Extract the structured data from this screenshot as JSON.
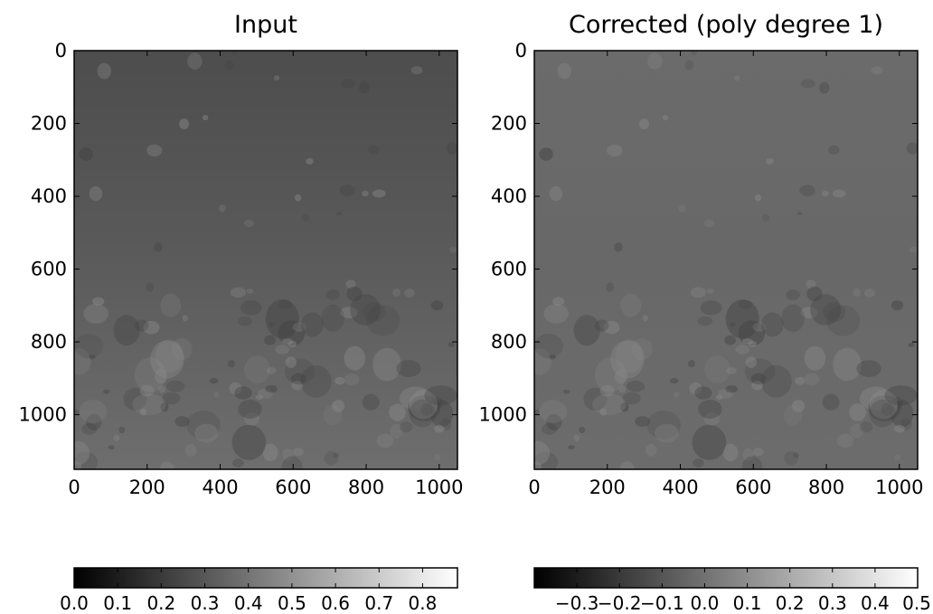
{
  "chart_data": [
    {
      "type": "heatmap",
      "title": "Input",
      "xlabel": "",
      "ylabel": "",
      "xlim": [
        0,
        1050
      ],
      "ylim": [
        1150,
        0
      ],
      "xticks": [
        0,
        200,
        400,
        600,
        800,
        1000
      ],
      "yticks": [
        0,
        200,
        400,
        600,
        800,
        1000
      ],
      "xticklabels": [
        "0",
        "200",
        "400",
        "600",
        "800",
        "1000"
      ],
      "yticklabels": [
        "0",
        "200",
        "400",
        "600",
        "800",
        "1000"
      ],
      "colormap": "gray",
      "colorbar": {
        "range": [
          0.0,
          0.88
        ],
        "ticks": [
          0.0,
          0.1,
          0.2,
          0.3,
          0.4,
          0.5,
          0.6,
          0.7,
          0.8
        ],
        "ticklabels": [
          "0.0",
          "0.1",
          "0.2",
          "0.3",
          "0.4",
          "0.5",
          "0.6",
          "0.7",
          "0.8"
        ]
      }
    },
    {
      "type": "heatmap",
      "title": "Corrected (poly degree 1)",
      "xlabel": "",
      "ylabel": "",
      "xlim": [
        0,
        1050
      ],
      "ylim": [
        1150,
        0
      ],
      "xticks": [
        0,
        200,
        400,
        600,
        800,
        1000
      ],
      "yticks": [
        0,
        200,
        400,
        600,
        800,
        1000
      ],
      "xticklabels": [
        "0",
        "200",
        "400",
        "600",
        "800",
        "1000"
      ],
      "yticklabels": [
        "0",
        "200",
        "400",
        "600",
        "800",
        "1000"
      ],
      "colormap": "gray",
      "colorbar": {
        "range": [
          -0.4,
          0.5
        ],
        "ticks": [
          -0.3,
          -0.2,
          -0.1,
          0.0,
          0.1,
          0.2,
          0.3,
          0.4,
          0.5
        ],
        "ticklabels": [
          "−0.3",
          "−0.2",
          "−0.1",
          "0.0",
          "0.1",
          "0.2",
          "0.3",
          "0.4",
          "0.5"
        ]
      }
    }
  ]
}
